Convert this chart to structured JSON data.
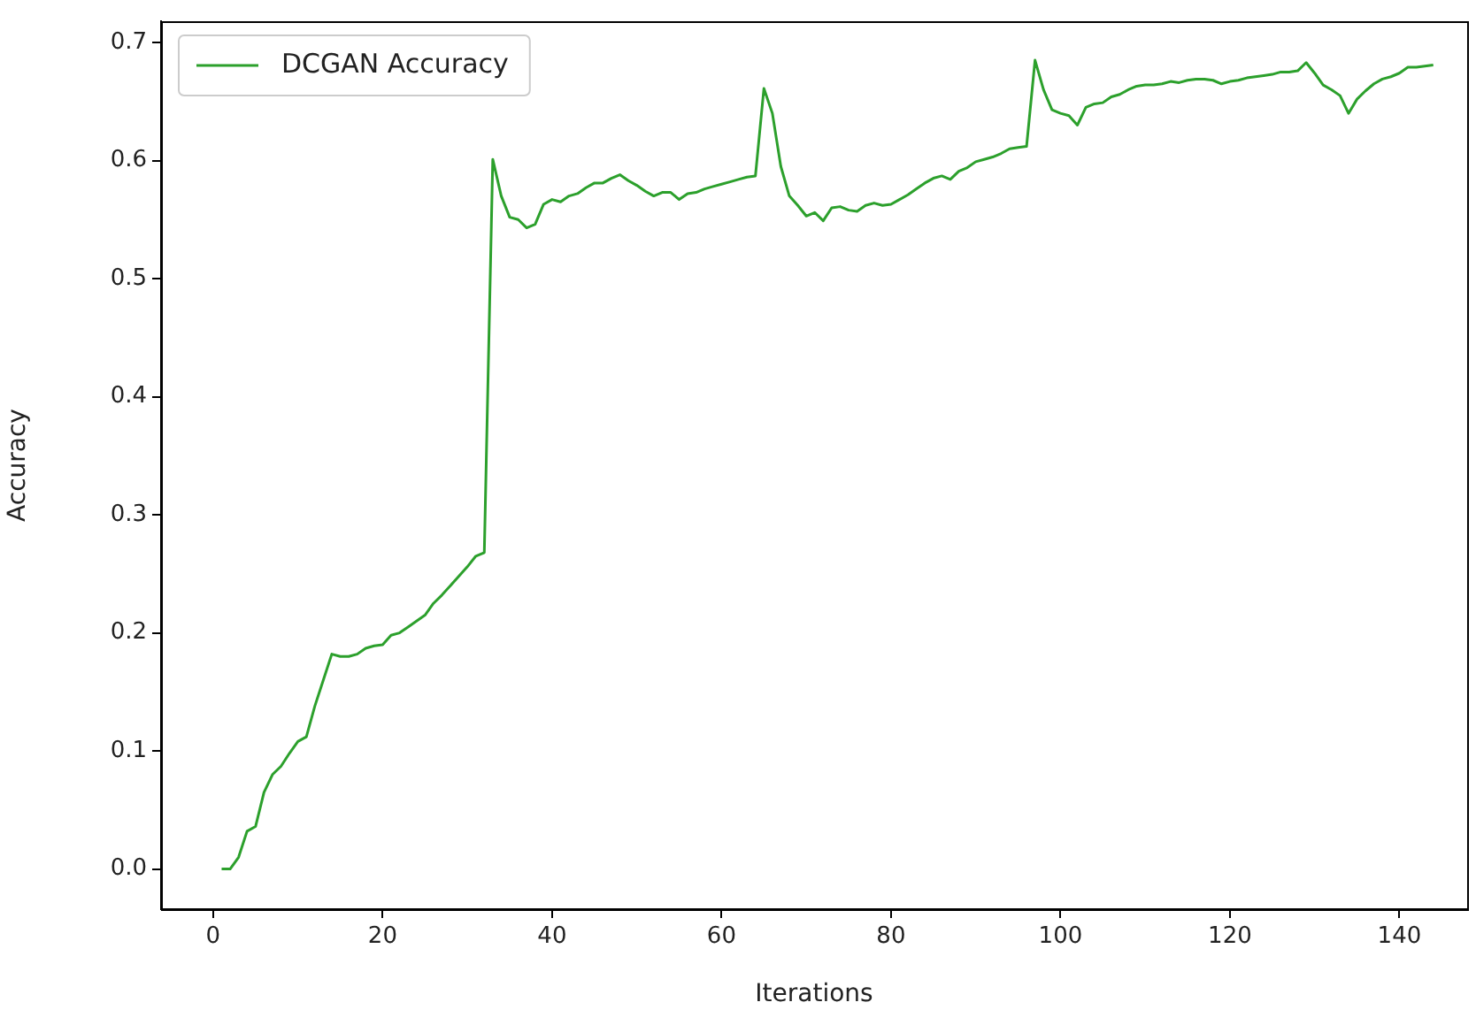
{
  "chart_data": {
    "type": "line",
    "xlabel": "Iterations",
    "ylabel": "Accuracy",
    "x": [
      1,
      2,
      3,
      4,
      5,
      6,
      7,
      8,
      9,
      10,
      11,
      12,
      13,
      14,
      15,
      16,
      17,
      18,
      19,
      20,
      21,
      22,
      23,
      24,
      25,
      26,
      27,
      28,
      29,
      30,
      31,
      32,
      33,
      34,
      35,
      36,
      37,
      38,
      39,
      40,
      41,
      42,
      43,
      44,
      45,
      46,
      47,
      48,
      49,
      50,
      51,
      52,
      53,
      54,
      55,
      56,
      57,
      58,
      59,
      60,
      61,
      62,
      63,
      64,
      65,
      66,
      67,
      68,
      69,
      70,
      71,
      72,
      73,
      74,
      75,
      76,
      77,
      78,
      79,
      80,
      81,
      82,
      83,
      84,
      85,
      86,
      87,
      88,
      89,
      90,
      91,
      92,
      93,
      94,
      95,
      96,
      97,
      98,
      99,
      100,
      101,
      102,
      103,
      104,
      105,
      106,
      107,
      108,
      109,
      110,
      111,
      112,
      113,
      114,
      115,
      116,
      117,
      118,
      119,
      120,
      121,
      122,
      123,
      124,
      125,
      126,
      127,
      128,
      129,
      130,
      131,
      132,
      133,
      134,
      135,
      136,
      137,
      138,
      139,
      140,
      141,
      142,
      143,
      144
    ],
    "series": [
      {
        "name": "DCGAN Accuracy",
        "color": "#2ca02c",
        "values": [
          0,
          0,
          0.01,
          0.032,
          0.036,
          0.065,
          0.08,
          0.087,
          0.098,
          0.108,
          0.112,
          0.138,
          0.16,
          0.182,
          0.18,
          0.18,
          0.182,
          0.187,
          0.189,
          0.19,
          0.198,
          0.2,
          0.205,
          0.21,
          0.215,
          0.225,
          0.232,
          0.24,
          0.248,
          0.256,
          0.265,
          0.268,
          0.601,
          0.57,
          0.552,
          0.55,
          0.543,
          0.546,
          0.563,
          0.567,
          0.565,
          0.57,
          0.572,
          0.577,
          0.581,
          0.581,
          0.585,
          0.588,
          0.583,
          0.579,
          0.574,
          0.57,
          0.573,
          0.573,
          0.567,
          0.572,
          0.573,
          0.576,
          0.578,
          0.58,
          0.582,
          0.584,
          0.586,
          0.587,
          0.661,
          0.64,
          0.595,
          0.57,
          0.562,
          0.553,
          0.556,
          0.549,
          0.56,
          0.561,
          0.558,
          0.557,
          0.562,
          0.564,
          0.562,
          0.563,
          0.567,
          0.571,
          0.576,
          0.581,
          0.585,
          0.587,
          0.584,
          0.591,
          0.594,
          0.599,
          0.601,
          0.603,
          0.606,
          0.61,
          0.611,
          0.612,
          0.685,
          0.66,
          0.643,
          0.64,
          0.638,
          0.63,
          0.645,
          0.648,
          0.649,
          0.654,
          0.656,
          0.66,
          0.663,
          0.664,
          0.664,
          0.665,
          0.667,
          0.666,
          0.668,
          0.669,
          0.669,
          0.668,
          0.665,
          0.667,
          0.668,
          0.67,
          0.671,
          0.672,
          0.673,
          0.675,
          0.675,
          0.676,
          0.683,
          0.674,
          0.664,
          0.66,
          0.655,
          0.64,
          0.652,
          0.659,
          0.665,
          0.669,
          0.671,
          0.674,
          0.679,
          0.679,
          0.68,
          0.681
        ]
      }
    ],
    "xlim": [
      -6.15,
      148
    ],
    "ylim": [
      -0.034,
      0.718
    ],
    "xticks": [
      0,
      20,
      40,
      60,
      80,
      100,
      120,
      140
    ],
    "yticks": [
      {
        "value": 0,
        "label": "0.0"
      },
      {
        "value": 0.1,
        "label": "0.1"
      },
      {
        "value": 0.2,
        "label": "0.2"
      },
      {
        "value": 0.3,
        "label": "0.3"
      },
      {
        "value": 0.4,
        "label": "0.4"
      },
      {
        "value": 0.5,
        "label": "0.5"
      },
      {
        "value": 0.6,
        "label": "0.6"
      },
      {
        "value": 0.7,
        "label": "0.7"
      }
    ],
    "grid": false,
    "legend": "top left",
    "marker": "none",
    "line_style": "solid"
  }
}
